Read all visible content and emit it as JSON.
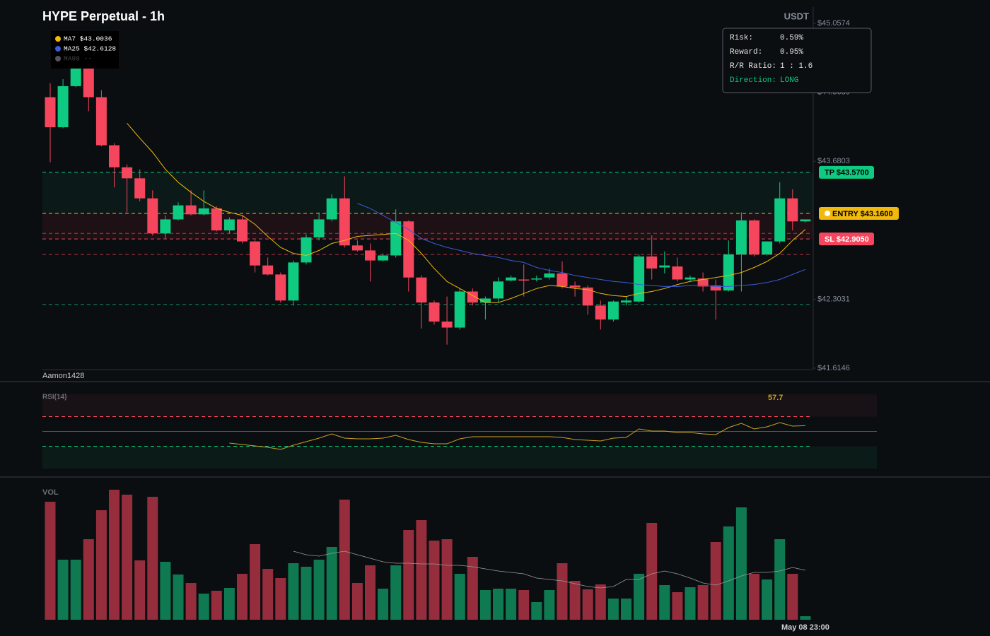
{
  "chart_data": [
    {
      "type": "candlestick",
      "title": "HYPE Perpetual - 1h",
      "currency": "USDT",
      "watermark": "Aamon1428",
      "ylim": [
        41.6146,
        45.0574
      ],
      "yticks": [
        {
          "value": 45.0574,
          "label": "$45.0574"
        },
        {
          "value": 44.3689,
          "label": "$44.3689"
        },
        {
          "value": 43.6803,
          "label": "$43.6803"
        },
        {
          "value": 42.3031,
          "label": "$42.3031"
        },
        {
          "value": 41.6146,
          "label": "$41.6146"
        }
      ],
      "up_color": "#0ecb81",
      "down_color": "#f6465d",
      "open": [
        44.32,
        44.02,
        44.43,
        44.62,
        44.32,
        43.84,
        43.62,
        43.51,
        43.31,
        42.96,
        43.1,
        43.24,
        43.15,
        43.21,
        42.99,
        43.1,
        42.88,
        42.64,
        42.55,
        42.29,
        42.67,
        42.92,
        43.1,
        43.31,
        42.84,
        42.79,
        42.69,
        42.74,
        43.08,
        42.52,
        42.27,
        42.08,
        42.02,
        42.38,
        42.27,
        42.31,
        42.49,
        42.5,
        42.5,
        42.52,
        42.56,
        42.44,
        42.42,
        42.24,
        42.1,
        42.27,
        42.28,
        42.73,
        42.62,
        42.63,
        42.5,
        42.51,
        42.44,
        42.39,
        42.75,
        43.09,
        42.75,
        42.88,
        43.31,
        43.08
      ],
      "high": [
        44.46,
        44.5,
        44.69,
        44.69,
        44.39,
        43.86,
        43.65,
        43.6,
        43.39,
        43.14,
        43.27,
        43.39,
        43.39,
        43.23,
        43.12,
        43.14,
        42.89,
        42.72,
        42.57,
        42.69,
        42.95,
        43.17,
        43.35,
        43.53,
        42.89,
        42.86,
        42.76,
        43.2,
        43.09,
        42.54,
        42.29,
        42.33,
        42.41,
        42.41,
        42.33,
        42.52,
        42.54,
        42.65,
        42.54,
        42.61,
        42.68,
        42.48,
        42.44,
        42.29,
        42.29,
        42.33,
        42.75,
        42.94,
        42.78,
        42.72,
        42.54,
        42.57,
        42.5,
        42.89,
        43.17,
        43.1,
        42.88,
        43.47,
        43.4,
        43.1
      ],
      "low": [
        43.67,
        44.01,
        44.42,
        44.18,
        43.83,
        43.42,
        43.17,
        43.28,
        42.94,
        42.91,
        43.09,
        43.14,
        43.14,
        42.98,
        42.96,
        42.86,
        42.57,
        42.54,
        42.27,
        42.24,
        42.65,
        42.89,
        43.08,
        42.82,
        42.78,
        42.48,
        42.68,
        42.72,
        42.38,
        42.01,
        42.05,
        41.85,
        42.0,
        42.24,
        42.1,
        42.27,
        42.48,
        42.33,
        42.48,
        42.5,
        42.41,
        42.33,
        42.15,
        42.0,
        42.08,
        42.24,
        42.27,
        42.5,
        42.56,
        42.48,
        42.48,
        42.38,
        42.1,
        42.38,
        42.38,
        42.73,
        42.74,
        42.86,
        42.99,
        43.07
      ],
      "close": [
        44.02,
        44.43,
        44.62,
        44.32,
        43.84,
        43.62,
        43.51,
        43.31,
        42.96,
        43.1,
        43.24,
        43.15,
        43.21,
        42.99,
        43.1,
        42.88,
        42.64,
        42.55,
        42.29,
        42.67,
        42.92,
        43.1,
        43.31,
        42.84,
        42.79,
        42.69,
        42.74,
        43.08,
        42.52,
        42.27,
        42.08,
        42.02,
        42.38,
        42.27,
        42.31,
        42.48,
        42.52,
        42.49,
        42.51,
        42.56,
        42.43,
        42.42,
        42.24,
        42.1,
        42.28,
        42.29,
        42.73,
        42.61,
        42.64,
        42.5,
        42.52,
        42.43,
        42.39,
        42.75,
        43.09,
        42.75,
        42.88,
        43.31,
        43.08,
        43.1
      ],
      "series": [
        {
          "name": "MA7 $43.0036",
          "color": "#f0b90b",
          "values": [
            null,
            null,
            null,
            null,
            null,
            null,
            44.06,
            43.91,
            43.77,
            43.6,
            43.47,
            43.37,
            43.28,
            43.21,
            43.17,
            43.14,
            43.05,
            42.93,
            42.82,
            42.76,
            42.74,
            42.79,
            42.86,
            42.89,
            42.93,
            42.94,
            42.95,
            42.96,
            42.89,
            42.76,
            42.61,
            42.48,
            42.41,
            42.34,
            42.27,
            42.27,
            42.31,
            42.36,
            42.41,
            42.44,
            42.43,
            42.41,
            42.4,
            42.36,
            42.34,
            42.33,
            42.36,
            42.38,
            42.41,
            42.45,
            42.48,
            42.5,
            42.52,
            42.54,
            42.57,
            42.62,
            42.68,
            42.76,
            42.89,
            43.0
          ]
        },
        {
          "name": "MA25 $42.6128",
          "color": "#3b5bdb",
          "values": [
            null,
            null,
            null,
            null,
            null,
            null,
            null,
            null,
            null,
            null,
            null,
            null,
            null,
            null,
            null,
            null,
            null,
            null,
            null,
            null,
            null,
            null,
            null,
            null,
            43.26,
            43.21,
            43.14,
            43.07,
            43.0,
            42.91,
            42.86,
            42.82,
            42.79,
            42.76,
            42.74,
            42.72,
            42.69,
            42.67,
            42.62,
            42.59,
            42.57,
            42.54,
            42.52,
            42.5,
            42.48,
            42.47,
            42.45,
            42.44,
            42.43,
            42.43,
            42.44,
            42.44,
            42.43,
            42.43,
            42.44,
            42.45,
            42.47,
            42.5,
            42.55,
            42.6
          ]
        },
        {
          "name": "MA99 --",
          "color": "#555555",
          "values": [
            null,
            null,
            null,
            null,
            null,
            null,
            null,
            null,
            null,
            null,
            null,
            null,
            null,
            null,
            null,
            null,
            null,
            null,
            null,
            null,
            null,
            null,
            null,
            null,
            null,
            null,
            null,
            null,
            null,
            null,
            null,
            null,
            null,
            null,
            null,
            null,
            null,
            null,
            null,
            null,
            null,
            null,
            null,
            null,
            null,
            null,
            null,
            null,
            null,
            null,
            null,
            null,
            null,
            null,
            null,
            null,
            null,
            null,
            null,
            null
          ]
        }
      ],
      "price_lines": [
        {
          "value": 43.57,
          "label": "TP $43.5700",
          "color": "#0ecb81"
        },
        {
          "value": 43.16,
          "label": "ENTRY $43.1600",
          "color": "#f0b90b"
        },
        {
          "value": 42.905,
          "label": "SL $42.9050",
          "color": "#f6465d"
        }
      ],
      "guide_lines": [
        {
          "value": 42.96,
          "color": "#f6465d"
        },
        {
          "value": 42.75,
          "color": "#f6465d"
        },
        {
          "value": 42.25,
          "color": "#0ecb81"
        }
      ],
      "info": [
        {
          "label": "Risk:",
          "value": "0.59%"
        },
        {
          "label": "Reward:",
          "value": "0.95%"
        },
        {
          "label": "R/R Ratio:",
          "value": "1 : 1.6"
        },
        {
          "label": "Direction:",
          "value": "LONG",
          "color": "#0ecb81"
        }
      ]
    },
    {
      "type": "line",
      "title": "RSI(14)",
      "ylim": [
        0,
        100
      ],
      "current": 57.7,
      "color": "#c9a227",
      "levels": [
        {
          "value": 70,
          "color": "#f6465d"
        },
        {
          "value": 50,
          "color": "#555555"
        },
        {
          "value": 30,
          "color": "#0ecb81"
        }
      ],
      "values": [
        null,
        null,
        null,
        null,
        null,
        null,
        null,
        null,
        null,
        null,
        null,
        null,
        null,
        null,
        34.3,
        32.4,
        30.5,
        28.6,
        25.7,
        31.4,
        36.2,
        41.0,
        46.7,
        41.0,
        40.0,
        40.0,
        41.0,
        44.8,
        39.0,
        35.2,
        33.3,
        33.3,
        40.0,
        42.9,
        42.9,
        42.9,
        42.9,
        42.9,
        42.9,
        42.9,
        41.9,
        39.0,
        38.1,
        37.1,
        41.0,
        41.9,
        53.3,
        50.5,
        50.5,
        48.6,
        48.6,
        46.7,
        45.7,
        55.2,
        61.0,
        53.3,
        56.2,
        61.9,
        57.1,
        57.7
      ]
    },
    {
      "type": "bar",
      "title": "VOL",
      "ylim": [
        0,
        190
      ],
      "up_color": "#0f7a52",
      "down_color": "#962d3c",
      "ma_color": "#9a9a9a",
      "categories": [
        null,
        null,
        null,
        null,
        null,
        null,
        null,
        null,
        null,
        null,
        null,
        null,
        null,
        null,
        null,
        null,
        null,
        null,
        null,
        null,
        null,
        null,
        null,
        null,
        null,
        null,
        null,
        null,
        null,
        null,
        null,
        null,
        null,
        null,
        null,
        null,
        null,
        null,
        null,
        null,
        null,
        null,
        null,
        null,
        null,
        null,
        null,
        null,
        null,
        null,
        null,
        null,
        null,
        null,
        null,
        null,
        null,
        null,
        null,
        "May 08 23:00"
      ],
      "values": [
        167,
        85,
        85,
        114,
        155,
        184,
        177,
        84,
        174,
        82,
        64,
        52,
        37,
        41,
        45,
        65,
        107,
        72,
        59,
        80,
        75,
        85,
        103,
        170,
        52,
        77,
        44,
        77,
        127,
        141,
        112,
        114,
        65,
        89,
        42,
        44,
        44,
        42,
        25,
        42,
        80,
        55,
        43,
        50,
        30,
        30,
        65,
        137,
        49,
        39,
        46,
        49,
        110,
        132,
        159,
        65,
        57,
        114,
        65,
        5
      ],
      "ma": [
        null,
        null,
        null,
        null,
        null,
        null,
        null,
        null,
        null,
        null,
        null,
        null,
        null,
        null,
        null,
        null,
        null,
        null,
        null,
        97,
        92,
        90,
        94,
        97,
        92,
        87,
        82,
        80,
        80,
        79,
        79,
        77,
        77,
        75,
        72,
        69,
        67,
        65,
        59,
        57,
        55,
        51,
        47,
        45,
        47,
        57,
        57,
        65,
        69,
        65,
        59,
        52,
        49,
        55,
        62,
        67,
        67,
        69,
        74,
        70
      ]
    }
  ]
}
